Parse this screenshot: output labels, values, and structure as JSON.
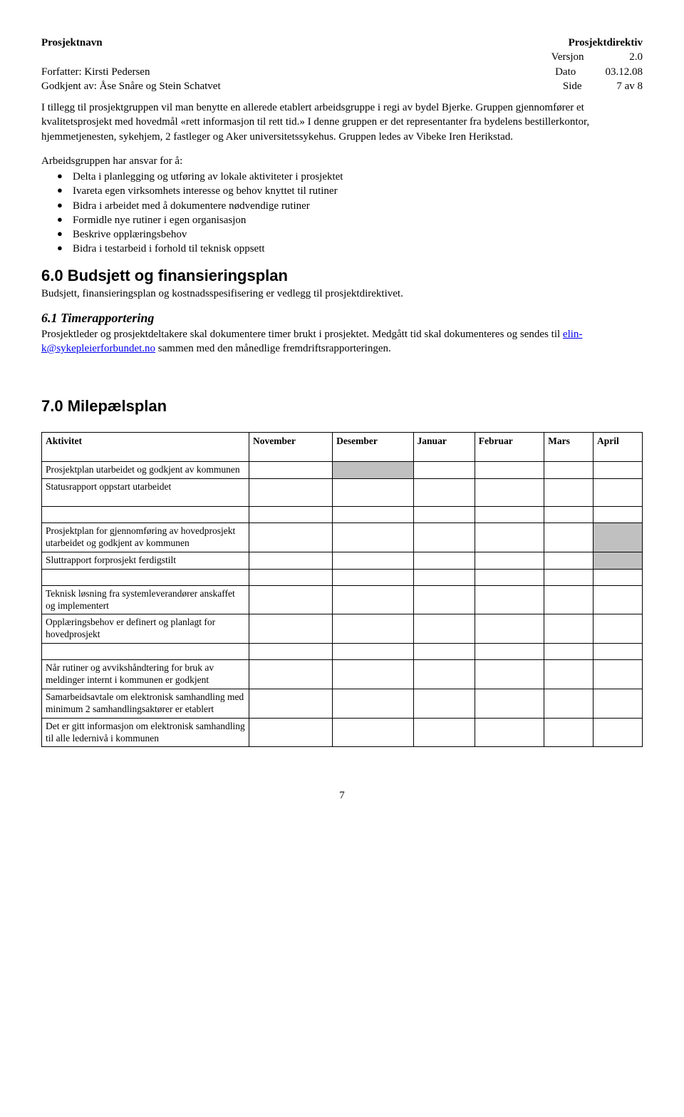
{
  "header": {
    "project_name_label": "Prosjektnavn",
    "directive_label": "Prosjektdirektiv",
    "version_label": "Versjon",
    "version_value": "2.0",
    "author_line": "Forfatter: Kirsti Pedersen",
    "date_label": "Dato",
    "date_value": "03.12.08",
    "approved_line": "Godkjent av: Åse Snåre og Stein Schatvet",
    "page_label": "Side",
    "page_value": "7   av 8"
  },
  "body": {
    "para1": "I tillegg til prosjektgruppen vil man benytte en allerede etablert arbeidsgruppe i regi av bydel Bjerke. Gruppen gjennomfører et kvalitetsprosjekt med hovedmål «rett informasjon til rett tid.» I denne gruppen er det representanter fra bydelens bestillerkontor, hjemmetjenesten, sykehjem, 2 fastleger og Aker universitetssykehus. Gruppen ledes av Vibeke Iren Herikstad.",
    "list_intro": "Arbeidsgruppen har ansvar for å:",
    "bullets": [
      "Delta i planlegging og utføring av lokale aktiviteter i prosjektet",
      "Ivareta egen virksomhets interesse og behov knyttet til rutiner",
      "Bidra i arbeidet med å dokumentere nødvendige rutiner",
      "Formidle nye rutiner i egen organisasjon",
      "Beskrive opplæringsbehov",
      "Bidra i testarbeid i forhold til teknisk oppsett"
    ],
    "h1_budget": "6.0 Budsjett og finansieringsplan",
    "budget_para": "Budsjett, finansieringsplan og kostnadsspesifisering er vedlegg til prosjektdirektivet.",
    "h2_time": "6.1 Timerapportering",
    "time_para_before": "Prosjektleder og prosjektdeltakere skal dokumentere timer brukt i prosjektet. Medgått tid skal dokumenteres og sendes til ",
    "time_email": "elin-k@sykepleierforbundet.no",
    "time_para_after": " sammen med den månedlige fremdriftsrapporteringen.",
    "h1_milestone": "7.0 Milepælsplan"
  },
  "table": {
    "headers": [
      "Aktivitet",
      "November",
      "Desember",
      "Januar",
      "Februar",
      "Mars",
      "April"
    ],
    "groups": [
      [
        {
          "activity": "Prosjektplan utarbeidet og godkjent av kommunen",
          "fill": [
            false,
            true,
            false,
            false,
            false,
            false
          ]
        },
        {
          "activity": "Statusrapport oppstart utarbeidet",
          "fill": [
            false,
            false,
            false,
            false,
            false,
            false
          ],
          "tall": true
        }
      ],
      [
        {
          "activity": "Prosjektplan for gjennomføring av hovedprosjekt utarbeidet og godkjent av kommunen",
          "fill": [
            false,
            false,
            false,
            false,
            false,
            true
          ]
        },
        {
          "activity": "Sluttrapport forprosjekt ferdigstilt",
          "fill": [
            false,
            false,
            false,
            false,
            false,
            true
          ]
        }
      ],
      [
        {
          "activity": "Teknisk løsning fra systemleverandører anskaffet og implementert",
          "fill": [
            false,
            false,
            false,
            false,
            false,
            false
          ]
        },
        {
          "activity": "Opplæringsbehov er definert og planlagt for hovedprosjekt",
          "fill": [
            false,
            false,
            false,
            false,
            false,
            false
          ]
        }
      ],
      [
        {
          "activity": "Når rutiner og avvikshåndtering for bruk av meldinger internt i kommunen er godkjent",
          "fill": [
            false,
            false,
            false,
            false,
            false,
            false
          ]
        },
        {
          "activity": "Samarbeidsavtale om elektronisk samhandling med minimum 2 samhandlingsaktører er etablert",
          "fill": [
            false,
            false,
            false,
            false,
            false,
            false
          ]
        },
        {
          "activity": "Det er gitt informasjon om elektronisk samhandling til alle ledernivå i kommunen",
          "fill": [
            false,
            false,
            false,
            false,
            false,
            false
          ]
        }
      ]
    ]
  },
  "footer": {
    "page_number": "7"
  }
}
